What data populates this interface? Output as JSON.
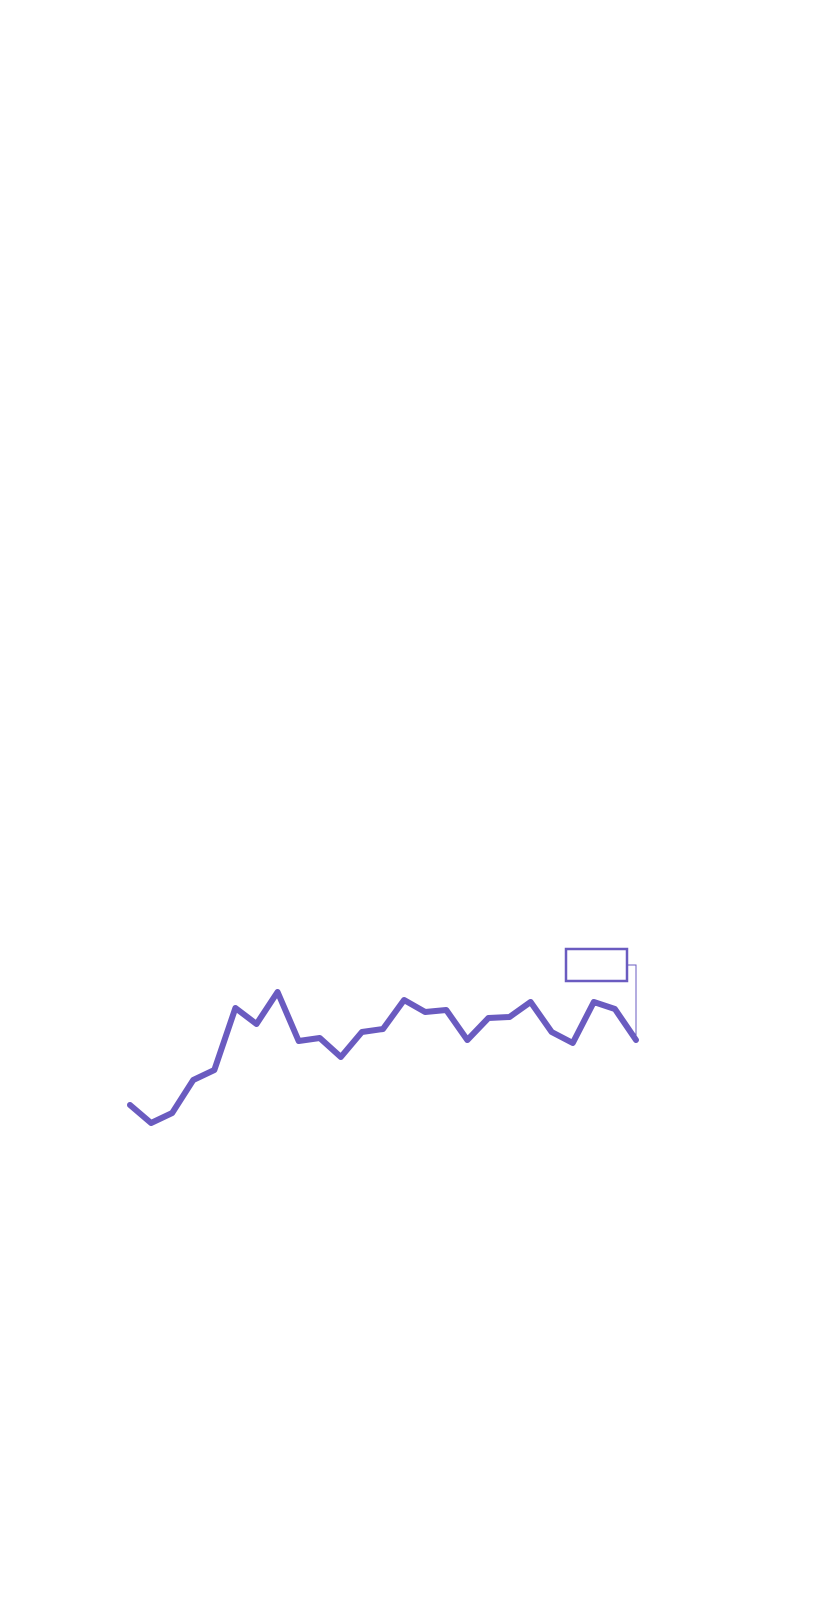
{
  "chart_data": {
    "type": "line",
    "categories": [
      null,
      null,
      null,
      null,
      null,
      null,
      null,
      null,
      null,
      null,
      null,
      null,
      null,
      null,
      null,
      null,
      null,
      null,
      null,
      null,
      null,
      null,
      null,
      null,
      null
    ],
    "series": [
      {
        "color": "#6a5bc0",
        "values": [
          25,
          7,
          17,
          50,
          60,
          122,
          106,
          138,
          89,
          92,
          73,
          98,
          101,
          130,
          118,
          120,
          90,
          112,
          113,
          128,
          98,
          87,
          128,
          121,
          90
        ]
      }
    ]
  }
}
